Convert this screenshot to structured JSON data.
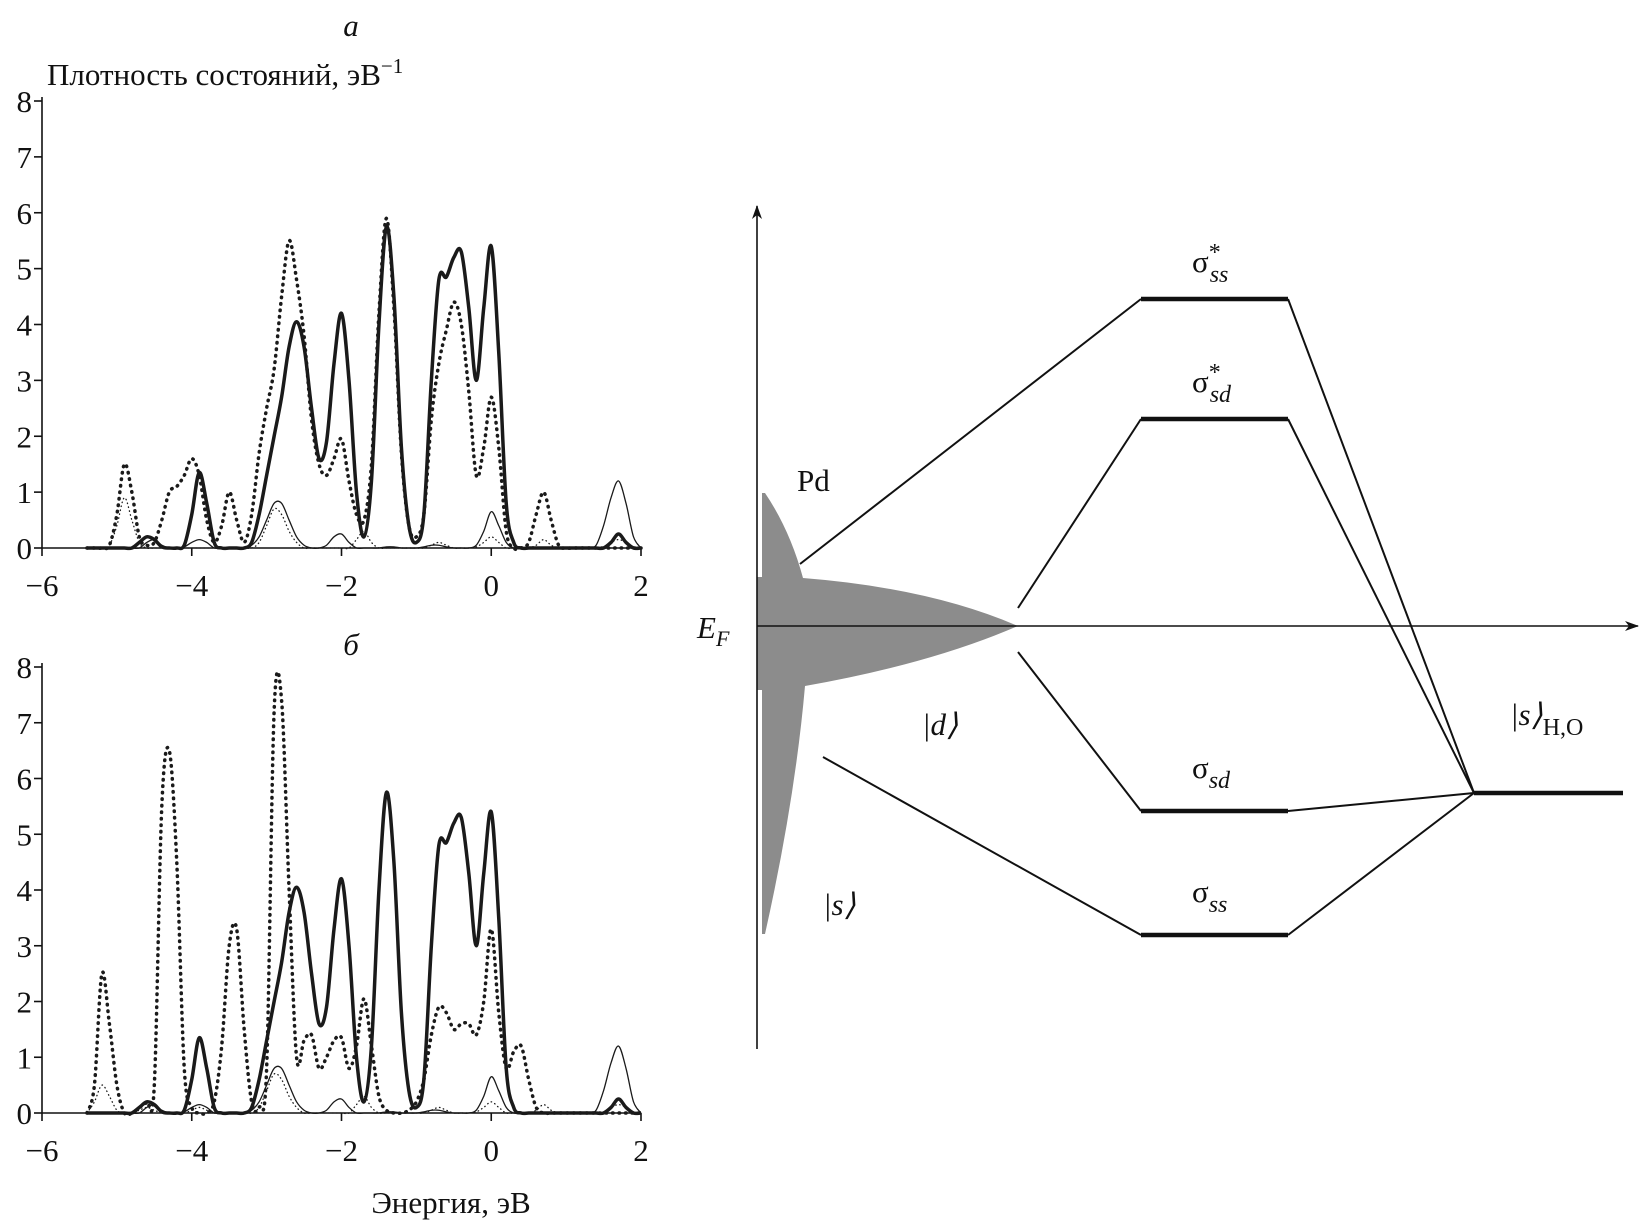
{
  "chart_data": [
    {
      "type": "line",
      "title": "а",
      "y_label": "Плотность состояний, эВ",
      "y_label_exponent": "−1",
      "xlim": [
        -6,
        2
      ],
      "ylim": [
        0,
        8
      ],
      "xticks": [
        {
          "value": -6,
          "label": "−6"
        },
        {
          "value": -4,
          "label": "−4"
        },
        {
          "value": -2,
          "label": "−2"
        },
        {
          "value": 0,
          "label": "0"
        },
        {
          "value": 2,
          "label": "2"
        }
      ],
      "yticks": [
        0,
        1,
        2,
        3,
        4,
        5,
        6,
        7,
        8
      ],
      "x": [
        -5.4,
        -5.3,
        -5.2,
        -5.1,
        -5.0,
        -4.9,
        -4.8,
        -4.7,
        -4.6,
        -4.5,
        -4.4,
        -4.3,
        -4.2,
        -4.1,
        -4.0,
        -3.9,
        -3.8,
        -3.7,
        -3.6,
        -3.5,
        -3.4,
        -3.3,
        -3.2,
        -3.1,
        -3.0,
        -2.9,
        -2.8,
        -2.7,
        -2.6,
        -2.5,
        -2.4,
        -2.3,
        -2.2,
        -2.1,
        -2.0,
        -1.9,
        -1.8,
        -1.7,
        -1.6,
        -1.5,
        -1.4,
        -1.3,
        -1.2,
        -1.1,
        -1.0,
        -0.9,
        -0.8,
        -0.7,
        -0.6,
        -0.5,
        -0.4,
        -0.3,
        -0.2,
        -0.1,
        0.0,
        0.1,
        0.2,
        0.3,
        0.4,
        0.5,
        0.6,
        0.7,
        0.8,
        0.9,
        1.0,
        1.1,
        1.2,
        1.3,
        1.4,
        1.5,
        1.6,
        1.7,
        1.8,
        1.9,
        2.0
      ],
      "series": [
        {
          "color": "#1a1a1a",
          "linewidth": 3.5,
          "linestyle": "solid",
          "values": [
            0,
            0,
            0,
            0,
            0,
            0,
            0,
            0.1,
            0.2,
            0.15,
            0.02,
            0,
            0,
            0.05,
            0.6,
            1.35,
            0.8,
            0.1,
            0,
            0,
            0,
            0,
            0.1,
            0.6,
            1.3,
            2.0,
            2.7,
            3.6,
            4.05,
            3.6,
            2.5,
            1.6,
            1.9,
            3.3,
            4.2,
            3.0,
            1.0,
            0.2,
            1.2,
            4.0,
            5.75,
            4.5,
            1.8,
            0.4,
            0.1,
            0.6,
            3.0,
            4.8,
            4.85,
            5.2,
            5.3,
            4.3,
            3.0,
            4.3,
            5.4,
            3.5,
            0.8,
            0.1,
            0,
            0,
            0,
            0,
            0,
            0,
            0,
            0,
            0,
            0,
            0,
            0,
            0.1,
            0.25,
            0.1,
            0,
            0
          ]
        },
        {
          "color": "#1a1a1a",
          "linewidth": 3.5,
          "linestyle": "dotted",
          "values": [
            0,
            0,
            0,
            0.05,
            0.6,
            1.5,
            1.0,
            0.2,
            0.05,
            0.1,
            0.5,
            1.0,
            1.1,
            1.3,
            1.6,
            1.3,
            0.5,
            0.1,
            0.4,
            1.0,
            0.5,
            0.1,
            0.6,
            1.7,
            2.5,
            3.2,
            4.5,
            5.5,
            4.8,
            3.8,
            2.3,
            1.5,
            1.3,
            1.6,
            1.95,
            1.2,
            0.6,
            0.5,
            1.5,
            4.2,
            5.9,
            4.3,
            1.7,
            0.4,
            0.2,
            0.6,
            2.3,
            3.3,
            3.9,
            4.4,
            4.0,
            2.8,
            1.3,
            1.8,
            2.7,
            1.8,
            0.3,
            0,
            0,
            0.1,
            0.6,
            1.0,
            0.5,
            0.05,
            0,
            0,
            0,
            0,
            0,
            0,
            0,
            0,
            0,
            0,
            0
          ]
        },
        {
          "color": "#1a1a1a",
          "linewidth": 1.3,
          "linestyle": "solid",
          "values": [
            0,
            0,
            0,
            0,
            0,
            0,
            0,
            0,
            0.1,
            0.15,
            0.05,
            0,
            0,
            0.02,
            0.1,
            0.15,
            0.1,
            0,
            0,
            0,
            0,
            0,
            0.05,
            0.2,
            0.5,
            0.8,
            0.8,
            0.5,
            0.2,
            0.05,
            0,
            0,
            0.05,
            0.2,
            0.25,
            0.1,
            0,
            0,
            0,
            0,
            0.02,
            0.02,
            0,
            0,
            0,
            0.02,
            0.05,
            0.05,
            0.02,
            0,
            0,
            0,
            0.05,
            0.3,
            0.65,
            0.4,
            0.1,
            0,
            0,
            0,
            0,
            0,
            0,
            0,
            0,
            0,
            0,
            0,
            0.05,
            0.4,
            0.9,
            1.2,
            0.8,
            0.2,
            0
          ]
        },
        {
          "color": "#1a1a1a",
          "linewidth": 1.3,
          "linestyle": "dotted",
          "values": [
            0,
            0,
            0,
            0.05,
            0.4,
            0.9,
            0.5,
            0.1,
            0,
            0,
            0,
            0,
            0,
            0,
            0,
            0,
            0,
            0,
            0,
            0,
            0,
            0,
            0,
            0.1,
            0.4,
            0.7,
            0.6,
            0.3,
            0.1,
            0,
            0,
            0,
            0,
            0,
            0,
            0,
            0.15,
            0.3,
            0.1,
            0,
            0,
            0,
            0,
            0,
            0,
            0,
            0.05,
            0.1,
            0.05,
            0,
            0,
            0,
            0.02,
            0.1,
            0.2,
            0.1,
            0,
            0,
            0,
            0,
            0.05,
            0.15,
            0.05,
            0,
            0,
            0,
            0,
            0,
            0,
            0,
            0.1,
            0.15,
            0.1,
            0,
            0
          ]
        }
      ]
    },
    {
      "type": "line",
      "title": "б",
      "x_label": "Энергия, эВ",
      "xlim": [
        -6,
        2
      ],
      "ylim": [
        0,
        8
      ],
      "xticks": [
        {
          "value": -6,
          "label": "−6"
        },
        {
          "value": -4,
          "label": "−4"
        },
        {
          "value": -2,
          "label": "−2"
        },
        {
          "value": 0,
          "label": "0"
        },
        {
          "value": 2,
          "label": "2"
        }
      ],
      "yticks": [
        0,
        1,
        2,
        3,
        4,
        5,
        6,
        7,
        8
      ],
      "x": [
        -5.4,
        -5.3,
        -5.2,
        -5.1,
        -5.0,
        -4.9,
        -4.8,
        -4.7,
        -4.6,
        -4.5,
        -4.4,
        -4.3,
        -4.2,
        -4.1,
        -4.0,
        -3.9,
        -3.8,
        -3.7,
        -3.6,
        -3.5,
        -3.4,
        -3.3,
        -3.2,
        -3.1,
        -3.0,
        -2.9,
        -2.8,
        -2.7,
        -2.6,
        -2.5,
        -2.4,
        -2.3,
        -2.2,
        -2.1,
        -2.0,
        -1.9,
        -1.8,
        -1.7,
        -1.6,
        -1.5,
        -1.4,
        -1.3,
        -1.2,
        -1.1,
        -1.0,
        -0.9,
        -0.8,
        -0.7,
        -0.6,
        -0.5,
        -0.4,
        -0.3,
        -0.2,
        -0.1,
        0.0,
        0.1,
        0.2,
        0.3,
        0.4,
        0.5,
        0.6,
        0.7,
        0.8,
        0.9,
        1.0,
        1.1,
        1.2,
        1.3,
        1.4,
        1.5,
        1.6,
        1.7,
        1.8,
        1.9,
        2.0
      ],
      "series": [
        {
          "color": "#1a1a1a",
          "linewidth": 3.5,
          "linestyle": "solid",
          "values": [
            0,
            0,
            0,
            0,
            0,
            0,
            0,
            0.1,
            0.2,
            0.15,
            0.02,
            0,
            0,
            0.05,
            0.6,
            1.35,
            0.8,
            0.1,
            0,
            0,
            0,
            0,
            0.1,
            0.6,
            1.3,
            2.0,
            2.7,
            3.6,
            4.05,
            3.6,
            2.5,
            1.6,
            1.9,
            3.3,
            4.2,
            3.0,
            1.0,
            0.2,
            1.2,
            4.0,
            5.75,
            4.5,
            1.8,
            0.4,
            0.1,
            0.6,
            3.0,
            4.8,
            4.85,
            5.2,
            5.3,
            4.3,
            3.0,
            4.3,
            5.4,
            3.5,
            0.8,
            0.1,
            0,
            0,
            0,
            0,
            0,
            0,
            0,
            0,
            0,
            0,
            0,
            0,
            0.1,
            0.25,
            0.1,
            0,
            0
          ]
        },
        {
          "color": "#1a1a1a",
          "linewidth": 3.5,
          "linestyle": "dotted",
          "values": [
            0,
            0.5,
            2.5,
            1.6,
            0.5,
            0,
            0,
            0.1,
            0.2,
            0.5,
            5.5,
            6.5,
            4.5,
            0.8,
            0.1,
            0,
            0,
            0.2,
            1.2,
            3.0,
            3.3,
            1.5,
            0.2,
            0.1,
            0.8,
            7.2,
            7.4,
            4.0,
            1.0,
            1.3,
            1.4,
            0.8,
            1.0,
            1.3,
            1.35,
            0.8,
            1.2,
            2.05,
            1.2,
            0.3,
            0.05,
            0,
            0,
            0.05,
            0.2,
            0.6,
            1.4,
            1.9,
            1.8,
            1.5,
            1.6,
            1.6,
            1.4,
            2.0,
            3.3,
            1.8,
            0.8,
            1.1,
            1.2,
            0.6,
            0.1,
            0,
            0,
            0,
            0,
            0,
            0,
            0,
            0,
            0,
            0,
            0,
            0,
            0,
            0
          ]
        },
        {
          "color": "#1a1a1a",
          "linewidth": 1.3,
          "linestyle": "solid",
          "values": [
            0,
            0,
            0,
            0,
            0,
            0,
            0,
            0,
            0.1,
            0.15,
            0.05,
            0,
            0,
            0.02,
            0.1,
            0.15,
            0.1,
            0,
            0,
            0,
            0,
            0,
            0.05,
            0.2,
            0.5,
            0.8,
            0.8,
            0.5,
            0.2,
            0.05,
            0,
            0,
            0.05,
            0.2,
            0.25,
            0.1,
            0,
            0,
            0,
            0,
            0.02,
            0.02,
            0,
            0,
            0,
            0.02,
            0.05,
            0.05,
            0.02,
            0,
            0,
            0,
            0.05,
            0.3,
            0.65,
            0.4,
            0.1,
            0,
            0,
            0,
            0,
            0,
            0,
            0,
            0,
            0,
            0,
            0,
            0.05,
            0.4,
            0.9,
            1.2,
            0.8,
            0.2,
            0
          ]
        },
        {
          "color": "#1a1a1a",
          "linewidth": 1.3,
          "linestyle": "dotted",
          "values": [
            0,
            0.2,
            0.5,
            0.3,
            0.05,
            0,
            0,
            0.05,
            0.1,
            0.05,
            0,
            0,
            0,
            0,
            0.05,
            0.1,
            0.05,
            0,
            0,
            0,
            0,
            0,
            0,
            0.1,
            0.4,
            0.7,
            0.6,
            0.3,
            0.1,
            0,
            0,
            0,
            0,
            0,
            0,
            0,
            0.15,
            0.3,
            0.1,
            0,
            0,
            0,
            0,
            0,
            0,
            0,
            0.05,
            0.1,
            0.05,
            0,
            0,
            0,
            0.02,
            0.1,
            0.2,
            0.1,
            0,
            0,
            0,
            0,
            0.05,
            0.15,
            0.05,
            0,
            0,
            0,
            0,
            0,
            0,
            0,
            0.1,
            0.15,
            0.1,
            0,
            0
          ]
        }
      ]
    }
  ],
  "diagram": {
    "metal": "Pd",
    "fermi": {
      "symbol": "E",
      "sub": "F"
    },
    "d_state": "|d⟩",
    "s_state": "|s⟩",
    "levels": [
      {
        "symbol": "σ",
        "sub": "ss",
        "sup": "*"
      },
      {
        "symbol": "σ",
        "sub": "sd",
        "sup": "*"
      },
      {
        "symbol": "σ",
        "sub": "sd"
      },
      {
        "symbol": "σ",
        "sub": "ss"
      }
    ],
    "adsorbate": {
      "symbol": "|s⟩",
      "sub": "H,O"
    }
  }
}
